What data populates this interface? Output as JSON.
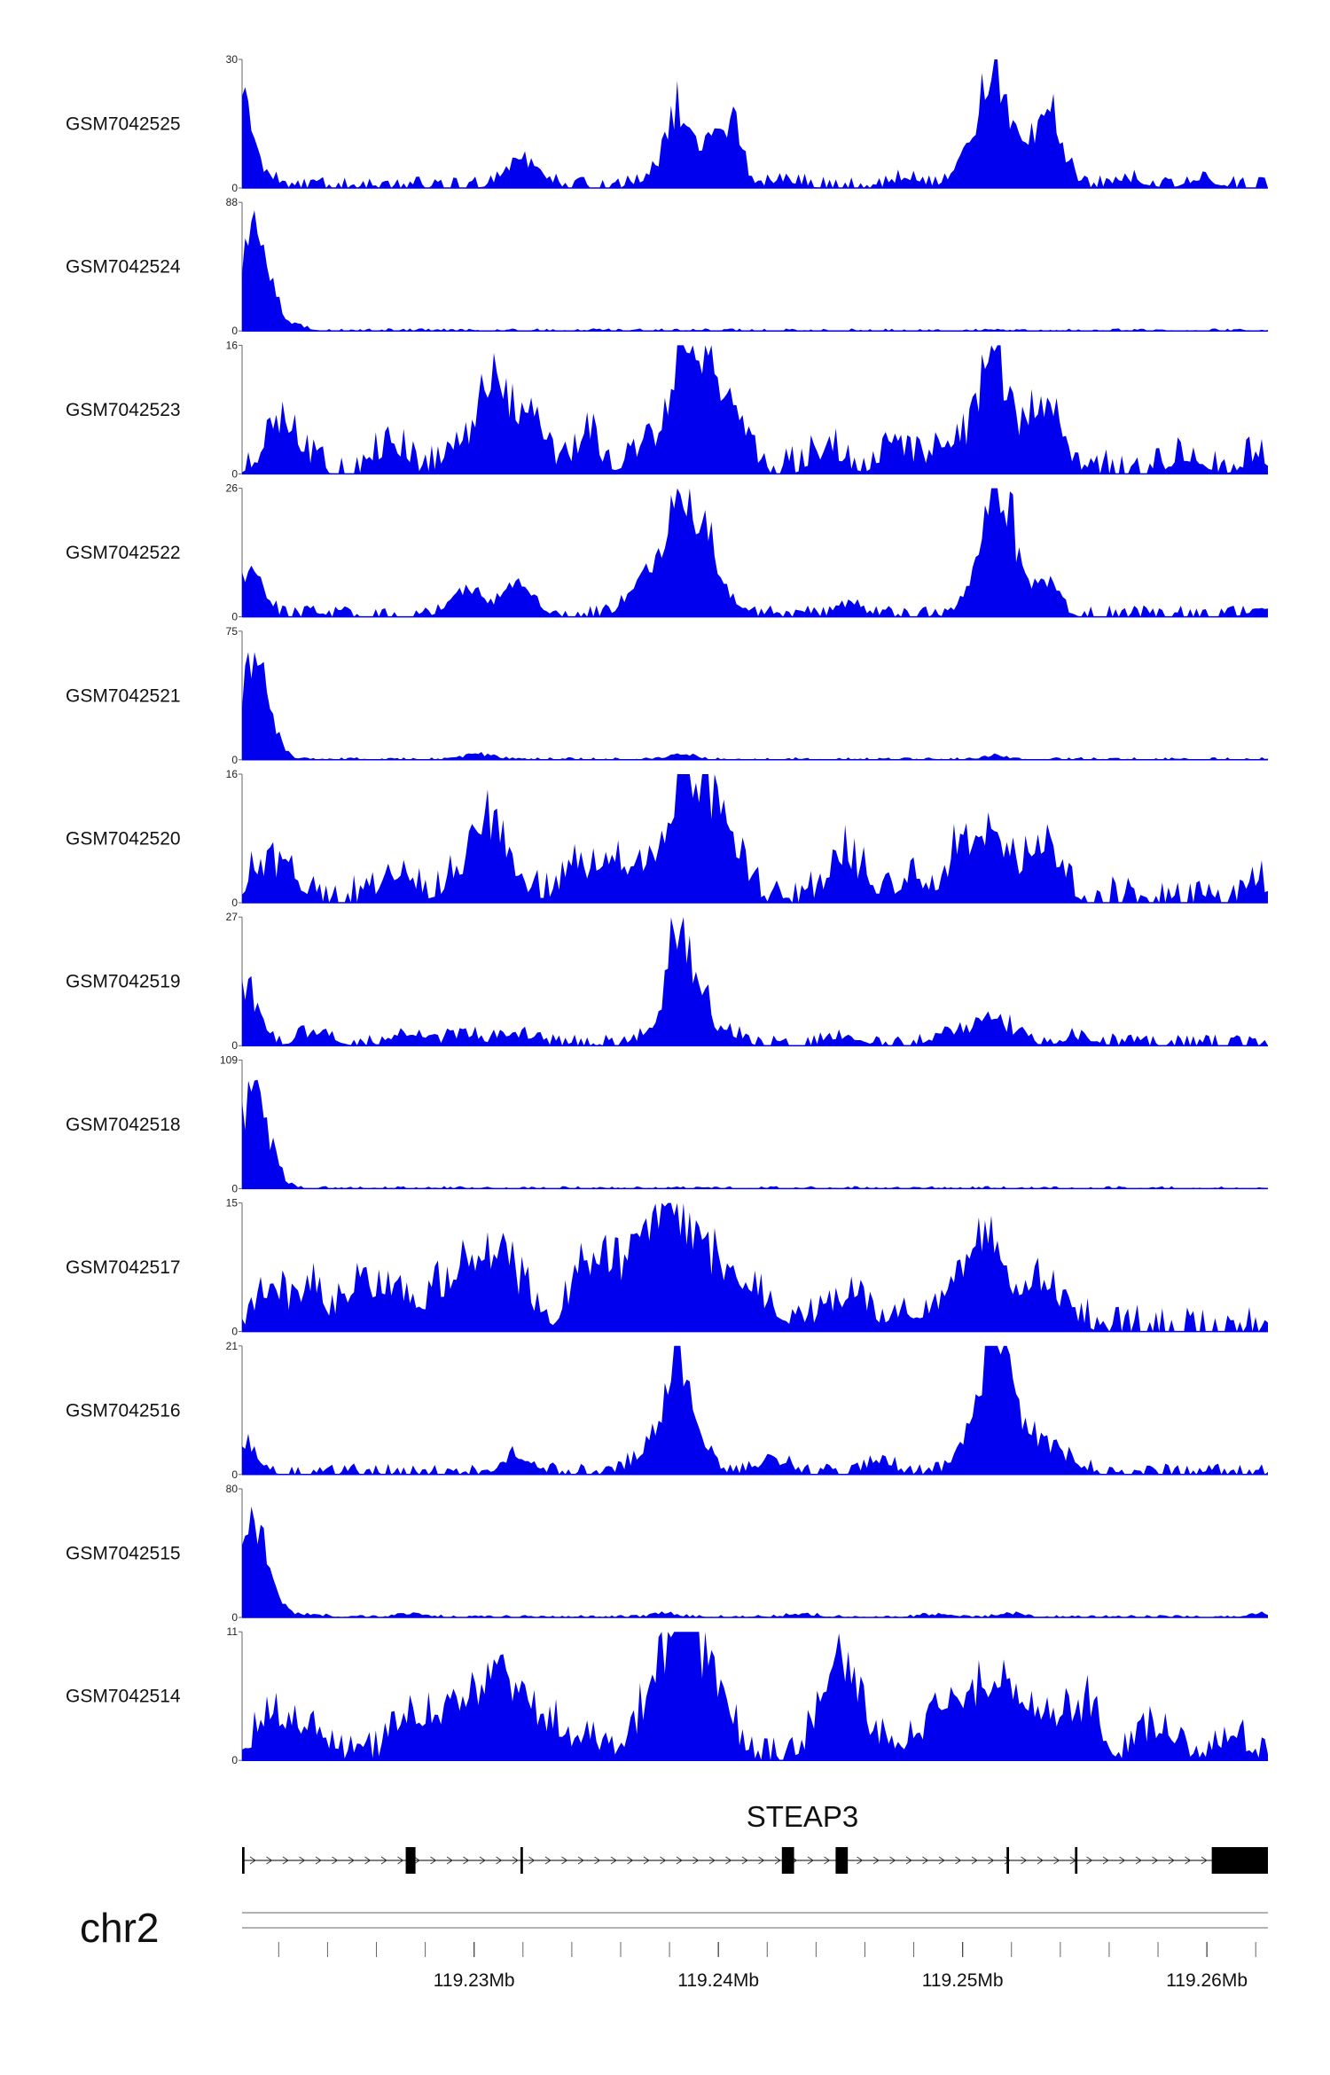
{
  "chart_data": {
    "type": "area",
    "x_range_mb": [
      119.2205,
      119.2625
    ],
    "chromosome": "chr2",
    "gene": {
      "name": "STEAP3",
      "strand": "+",
      "start_mb": 119.2205,
      "end_mb": 119.2625,
      "exons_mb": [
        [
          119.2205,
          119.2206
        ],
        [
          119.2272,
          119.2276
        ],
        [
          119.2319,
          119.232
        ],
        [
          119.2426,
          119.2431
        ],
        [
          119.2448,
          119.2453
        ],
        [
          119.2518,
          119.2519
        ],
        [
          119.2546,
          119.2547
        ],
        [
          119.2602,
          119.2625
        ]
      ]
    },
    "coordinate_ticks": [
      {
        "mb": 119.23,
        "label": "119.23Mb"
      },
      {
        "mb": 119.24,
        "label": "119.24Mb"
      },
      {
        "mb": 119.25,
        "label": "119.25Mb"
      },
      {
        "mb": 119.26,
        "label": "119.26Mb"
      }
    ],
    "minor_tick_step_mb": 0.002,
    "fill_color": "#0000ee",
    "series": [
      {
        "name": "GSM7042525",
        "ymax": 30,
        "ymin": 0,
        "profile": "broad",
        "peaks": [
          [
            119.2206,
            0.75,
            0.0003
          ],
          [
            119.2214,
            0.15,
            0.0004
          ],
          [
            119.2318,
            0.22,
            0.0006
          ],
          [
            119.2326,
            0.1,
            0.0005
          ],
          [
            119.2373,
            0.1,
            0.0005
          ],
          [
            119.2382,
            0.62,
            0.0004
          ],
          [
            119.2387,
            0.35,
            0.0004
          ],
          [
            119.2397,
            0.52,
            0.0004
          ],
          [
            119.2406,
            0.62,
            0.0004
          ],
          [
            119.2428,
            0.06,
            0.0006
          ],
          [
            119.2478,
            0.1,
            0.0005
          ],
          [
            119.2503,
            0.35,
            0.0006
          ],
          [
            119.2512,
            1.0,
            0.0004
          ],
          [
            119.2518,
            0.5,
            0.0004
          ],
          [
            119.2526,
            0.3,
            0.0005
          ],
          [
            119.2536,
            0.75,
            0.0005
          ],
          [
            119.2568,
            0.08,
            0.0006
          ],
          [
            119.2598,
            0.08,
            0.0006
          ]
        ]
      },
      {
        "name": "GSM7042524",
        "ymax": 88,
        "ymin": 0,
        "profile": "promoter",
        "peaks": [
          [
            119.221,
            0.95,
            0.0006
          ],
          [
            119.2224,
            0.05,
            0.0006
          ]
        ]
      },
      {
        "name": "GSM7042523",
        "ymax": 16,
        "ymin": 0,
        "profile": "noisy",
        "peaks": [
          [
            119.2217,
            0.25,
            0.0005
          ],
          [
            119.2225,
            0.3,
            0.0006
          ],
          [
            119.2266,
            0.3,
            0.0005
          ],
          [
            119.2294,
            0.25,
            0.0006
          ],
          [
            119.2306,
            0.6,
            0.0005
          ],
          [
            119.2314,
            0.4,
            0.0006
          ],
          [
            119.2322,
            0.4,
            0.0006
          ],
          [
            119.2346,
            0.3,
            0.0005
          ],
          [
            119.2372,
            0.35,
            0.0006
          ],
          [
            119.2384,
            1.0,
            0.0004
          ],
          [
            119.2389,
            0.5,
            0.0004
          ],
          [
            119.2395,
            0.7,
            0.0004
          ],
          [
            119.2402,
            0.6,
            0.0004
          ],
          [
            119.2408,
            0.35,
            0.0005
          ],
          [
            119.2445,
            0.2,
            0.0006
          ],
          [
            119.2472,
            0.3,
            0.0005
          ],
          [
            119.249,
            0.2,
            0.0006
          ],
          [
            119.2506,
            0.45,
            0.0006
          ],
          [
            119.2513,
            0.85,
            0.0004
          ],
          [
            119.252,
            0.35,
            0.0005
          ],
          [
            119.253,
            0.35,
            0.0006
          ],
          [
            119.2537,
            0.45,
            0.0005
          ],
          [
            119.2592,
            0.15,
            0.0006
          ],
          [
            119.262,
            0.15,
            0.0005
          ]
        ]
      },
      {
        "name": "GSM7042522",
        "ymax": 26,
        "ymin": 0,
        "profile": "broad",
        "peaks": [
          [
            119.2208,
            0.45,
            0.0005
          ],
          [
            119.2296,
            0.25,
            0.0006
          ],
          [
            119.2318,
            0.3,
            0.0006
          ],
          [
            119.2366,
            0.15,
            0.0006
          ],
          [
            119.2376,
            0.4,
            0.0006
          ],
          [
            119.2384,
            0.95,
            0.0004
          ],
          [
            119.2389,
            0.4,
            0.0004
          ],
          [
            119.2395,
            0.7,
            0.0004
          ],
          [
            119.2403,
            0.2,
            0.0005
          ],
          [
            119.2455,
            0.08,
            0.0006
          ],
          [
            119.2508,
            0.4,
            0.0006
          ],
          [
            119.2514,
            0.9,
            0.0005
          ],
          [
            119.252,
            0.45,
            0.0005
          ],
          [
            119.2534,
            0.35,
            0.0005
          ],
          [
            119.2622,
            0.08,
            0.0005
          ]
        ]
      },
      {
        "name": "GSM7042521",
        "ymax": 75,
        "ymin": 0,
        "profile": "promoter",
        "peaks": [
          [
            119.221,
            0.95,
            0.0006
          ],
          [
            119.2303,
            0.05,
            0.0006
          ],
          [
            119.2385,
            0.06,
            0.0005
          ],
          [
            119.2513,
            0.04,
            0.0005
          ]
        ]
      },
      {
        "name": "GSM7042520",
        "ymax": 16,
        "ymin": 0,
        "profile": "noisy",
        "peaks": [
          [
            119.2213,
            0.3,
            0.0005
          ],
          [
            119.2223,
            0.25,
            0.0006
          ],
          [
            119.2268,
            0.2,
            0.0006
          ],
          [
            119.2294,
            0.25,
            0.0006
          ],
          [
            119.2304,
            0.6,
            0.0005
          ],
          [
            119.2313,
            0.4,
            0.0006
          ],
          [
            119.2341,
            0.3,
            0.0006
          ],
          [
            119.2357,
            0.3,
            0.0006
          ],
          [
            119.2372,
            0.35,
            0.0006
          ],
          [
            119.2384,
            1.0,
            0.0004
          ],
          [
            119.239,
            0.45,
            0.0004
          ],
          [
            119.2395,
            0.7,
            0.0004
          ],
          [
            119.2402,
            0.5,
            0.0004
          ],
          [
            119.2408,
            0.3,
            0.0005
          ],
          [
            119.2449,
            0.3,
            0.0005
          ],
          [
            119.2457,
            0.25,
            0.0006
          ],
          [
            119.248,
            0.2,
            0.0006
          ],
          [
            119.25,
            0.4,
            0.0006
          ],
          [
            119.2508,
            0.4,
            0.0006
          ],
          [
            119.2516,
            0.3,
            0.0006
          ],
          [
            119.2528,
            0.3,
            0.0006
          ],
          [
            119.2537,
            0.35,
            0.0005
          ],
          [
            119.2622,
            0.15,
            0.0005
          ]
        ]
      },
      {
        "name": "GSM7042519",
        "ymax": 27,
        "ymin": 0,
        "profile": "broad",
        "peaks": [
          [
            119.2207,
            0.55,
            0.0005
          ],
          [
            119.2235,
            0.12,
            0.0006
          ],
          [
            119.2272,
            0.1,
            0.0006
          ],
          [
            119.2296,
            0.1,
            0.0006
          ],
          [
            119.2318,
            0.1,
            0.0006
          ],
          [
            119.2378,
            0.25,
            0.0006
          ],
          [
            119.2384,
            1.0,
            0.0004
          ],
          [
            119.2393,
            0.45,
            0.0004
          ],
          [
            119.2404,
            0.12,
            0.0005
          ],
          [
            119.2452,
            0.08,
            0.0006
          ],
          [
            119.2494,
            0.12,
            0.0006
          ],
          [
            119.2508,
            0.15,
            0.0006
          ],
          [
            119.2518,
            0.15,
            0.0006
          ],
          [
            119.2548,
            0.08,
            0.0006
          ]
        ]
      },
      {
        "name": "GSM7042518",
        "ymax": 109,
        "ymin": 0,
        "profile": "promoter",
        "peaks": [
          [
            119.221,
            0.95,
            0.0006
          ]
        ]
      },
      {
        "name": "GSM7042517",
        "ymax": 15,
        "ymin": 0,
        "profile": "noisy",
        "peaks": [
          [
            119.2216,
            0.4,
            0.0005
          ],
          [
            119.2232,
            0.35,
            0.0006
          ],
          [
            119.2252,
            0.4,
            0.0006
          ],
          [
            119.2266,
            0.4,
            0.0006
          ],
          [
            119.2286,
            0.35,
            0.0006
          ],
          [
            119.2298,
            0.45,
            0.0006
          ],
          [
            119.2309,
            0.55,
            0.0005
          ],
          [
            119.2318,
            0.4,
            0.0006
          ],
          [
            119.2342,
            0.4,
            0.0005
          ],
          [
            119.2352,
            0.45,
            0.0006
          ],
          [
            119.2363,
            0.55,
            0.0005
          ],
          [
            119.2372,
            0.7,
            0.0005
          ],
          [
            119.238,
            1.0,
            0.0004
          ],
          [
            119.2387,
            0.75,
            0.0005
          ],
          [
            119.2396,
            0.55,
            0.0005
          ],
          [
            119.2405,
            0.4,
            0.0005
          ],
          [
            119.2418,
            0.3,
            0.0006
          ],
          [
            119.2443,
            0.15,
            0.0006
          ],
          [
            119.2457,
            0.3,
            0.0005
          ],
          [
            119.2476,
            0.2,
            0.0006
          ],
          [
            119.2498,
            0.4,
            0.0006
          ],
          [
            119.2506,
            0.45,
            0.0006
          ],
          [
            119.2514,
            0.65,
            0.0005
          ],
          [
            119.253,
            0.35,
            0.0006
          ],
          [
            119.254,
            0.25,
            0.0006
          ]
        ]
      },
      {
        "name": "GSM7042516",
        "ymax": 21,
        "ymin": 0,
        "profile": "broad",
        "peaks": [
          [
            119.2207,
            0.25,
            0.0005
          ],
          [
            119.2318,
            0.15,
            0.0006
          ],
          [
            119.237,
            0.15,
            0.0006
          ],
          [
            119.2378,
            0.4,
            0.0006
          ],
          [
            119.2384,
            0.9,
            0.0004
          ],
          [
            119.2392,
            0.3,
            0.0005
          ],
          [
            119.2422,
            0.15,
            0.0006
          ],
          [
            119.2466,
            0.1,
            0.0006
          ],
          [
            119.2505,
            0.45,
            0.0006
          ],
          [
            119.2513,
            1.0,
            0.0004
          ],
          [
            119.2519,
            0.65,
            0.0005
          ],
          [
            119.253,
            0.3,
            0.0006
          ],
          [
            119.2542,
            0.15,
            0.0006
          ]
        ]
      },
      {
        "name": "GSM7042515",
        "ymax": 80,
        "ymin": 0,
        "profile": "promoter",
        "peaks": [
          [
            119.221,
            0.95,
            0.0006
          ],
          [
            119.2232,
            0.03,
            0.0006
          ],
          [
            119.2274,
            0.03,
            0.0006
          ],
          [
            119.2378,
            0.04,
            0.0005
          ],
          [
            119.2434,
            0.03,
            0.0006
          ],
          [
            119.249,
            0.03,
            0.0006
          ],
          [
            119.252,
            0.04,
            0.0005
          ],
          [
            119.2622,
            0.04,
            0.0005
          ]
        ]
      },
      {
        "name": "GSM7042514",
        "ymax": 11,
        "ymin": 0,
        "profile": "noisy",
        "peaks": [
          [
            119.2216,
            0.4,
            0.0005
          ],
          [
            119.2232,
            0.4,
            0.0006
          ],
          [
            119.2272,
            0.3,
            0.0006
          ],
          [
            119.2286,
            0.4,
            0.0006
          ],
          [
            119.2298,
            0.5,
            0.0006
          ],
          [
            119.2309,
            0.6,
            0.0005
          ],
          [
            119.2318,
            0.55,
            0.0006
          ],
          [
            119.233,
            0.3,
            0.0006
          ],
          [
            119.2346,
            0.2,
            0.0006
          ],
          [
            119.2372,
            0.45,
            0.0006
          ],
          [
            119.238,
            0.75,
            0.0005
          ],
          [
            119.2387,
            1.0,
            0.0004
          ],
          [
            119.2394,
            0.7,
            0.0005
          ],
          [
            119.2402,
            0.45,
            0.0005
          ],
          [
            119.2444,
            0.4,
            0.0006
          ],
          [
            119.2451,
            0.6,
            0.0005
          ],
          [
            119.246,
            0.3,
            0.0006
          ],
          [
            119.2482,
            0.2,
            0.0006
          ],
          [
            119.2494,
            0.45,
            0.0006
          ],
          [
            119.2506,
            0.6,
            0.0005
          ],
          [
            119.2516,
            0.55,
            0.0005
          ],
          [
            119.2528,
            0.4,
            0.0006
          ],
          [
            119.2542,
            0.3,
            0.0006
          ],
          [
            119.2552,
            0.45,
            0.0005
          ],
          [
            119.258,
            0.3,
            0.0006
          ],
          [
            119.261,
            0.2,
            0.0006
          ]
        ]
      }
    ]
  }
}
